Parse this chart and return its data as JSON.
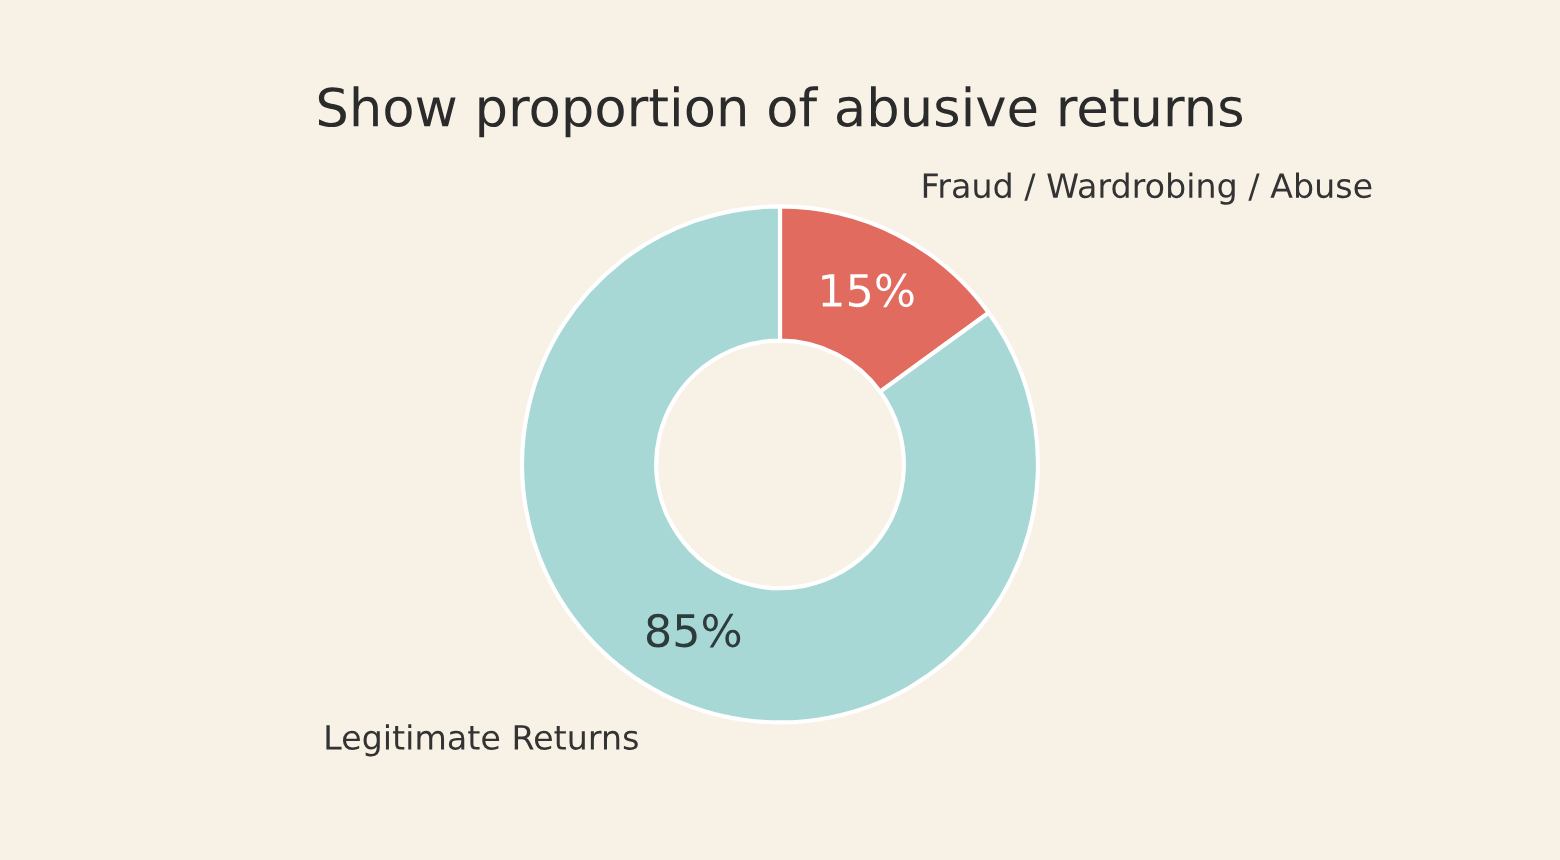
{
  "chart_data": {
    "type": "donut",
    "title": "Show proportion of abusive returns",
    "categories": [
      "Fraud / Wardrobing / Abuse",
      "Legitimate Returns"
    ],
    "values": [
      15,
      85
    ],
    "colors": [
      "#e06b5e",
      "#a8d8d6"
    ],
    "value_labels": [
      "15%",
      "85%"
    ],
    "legend": false
  }
}
